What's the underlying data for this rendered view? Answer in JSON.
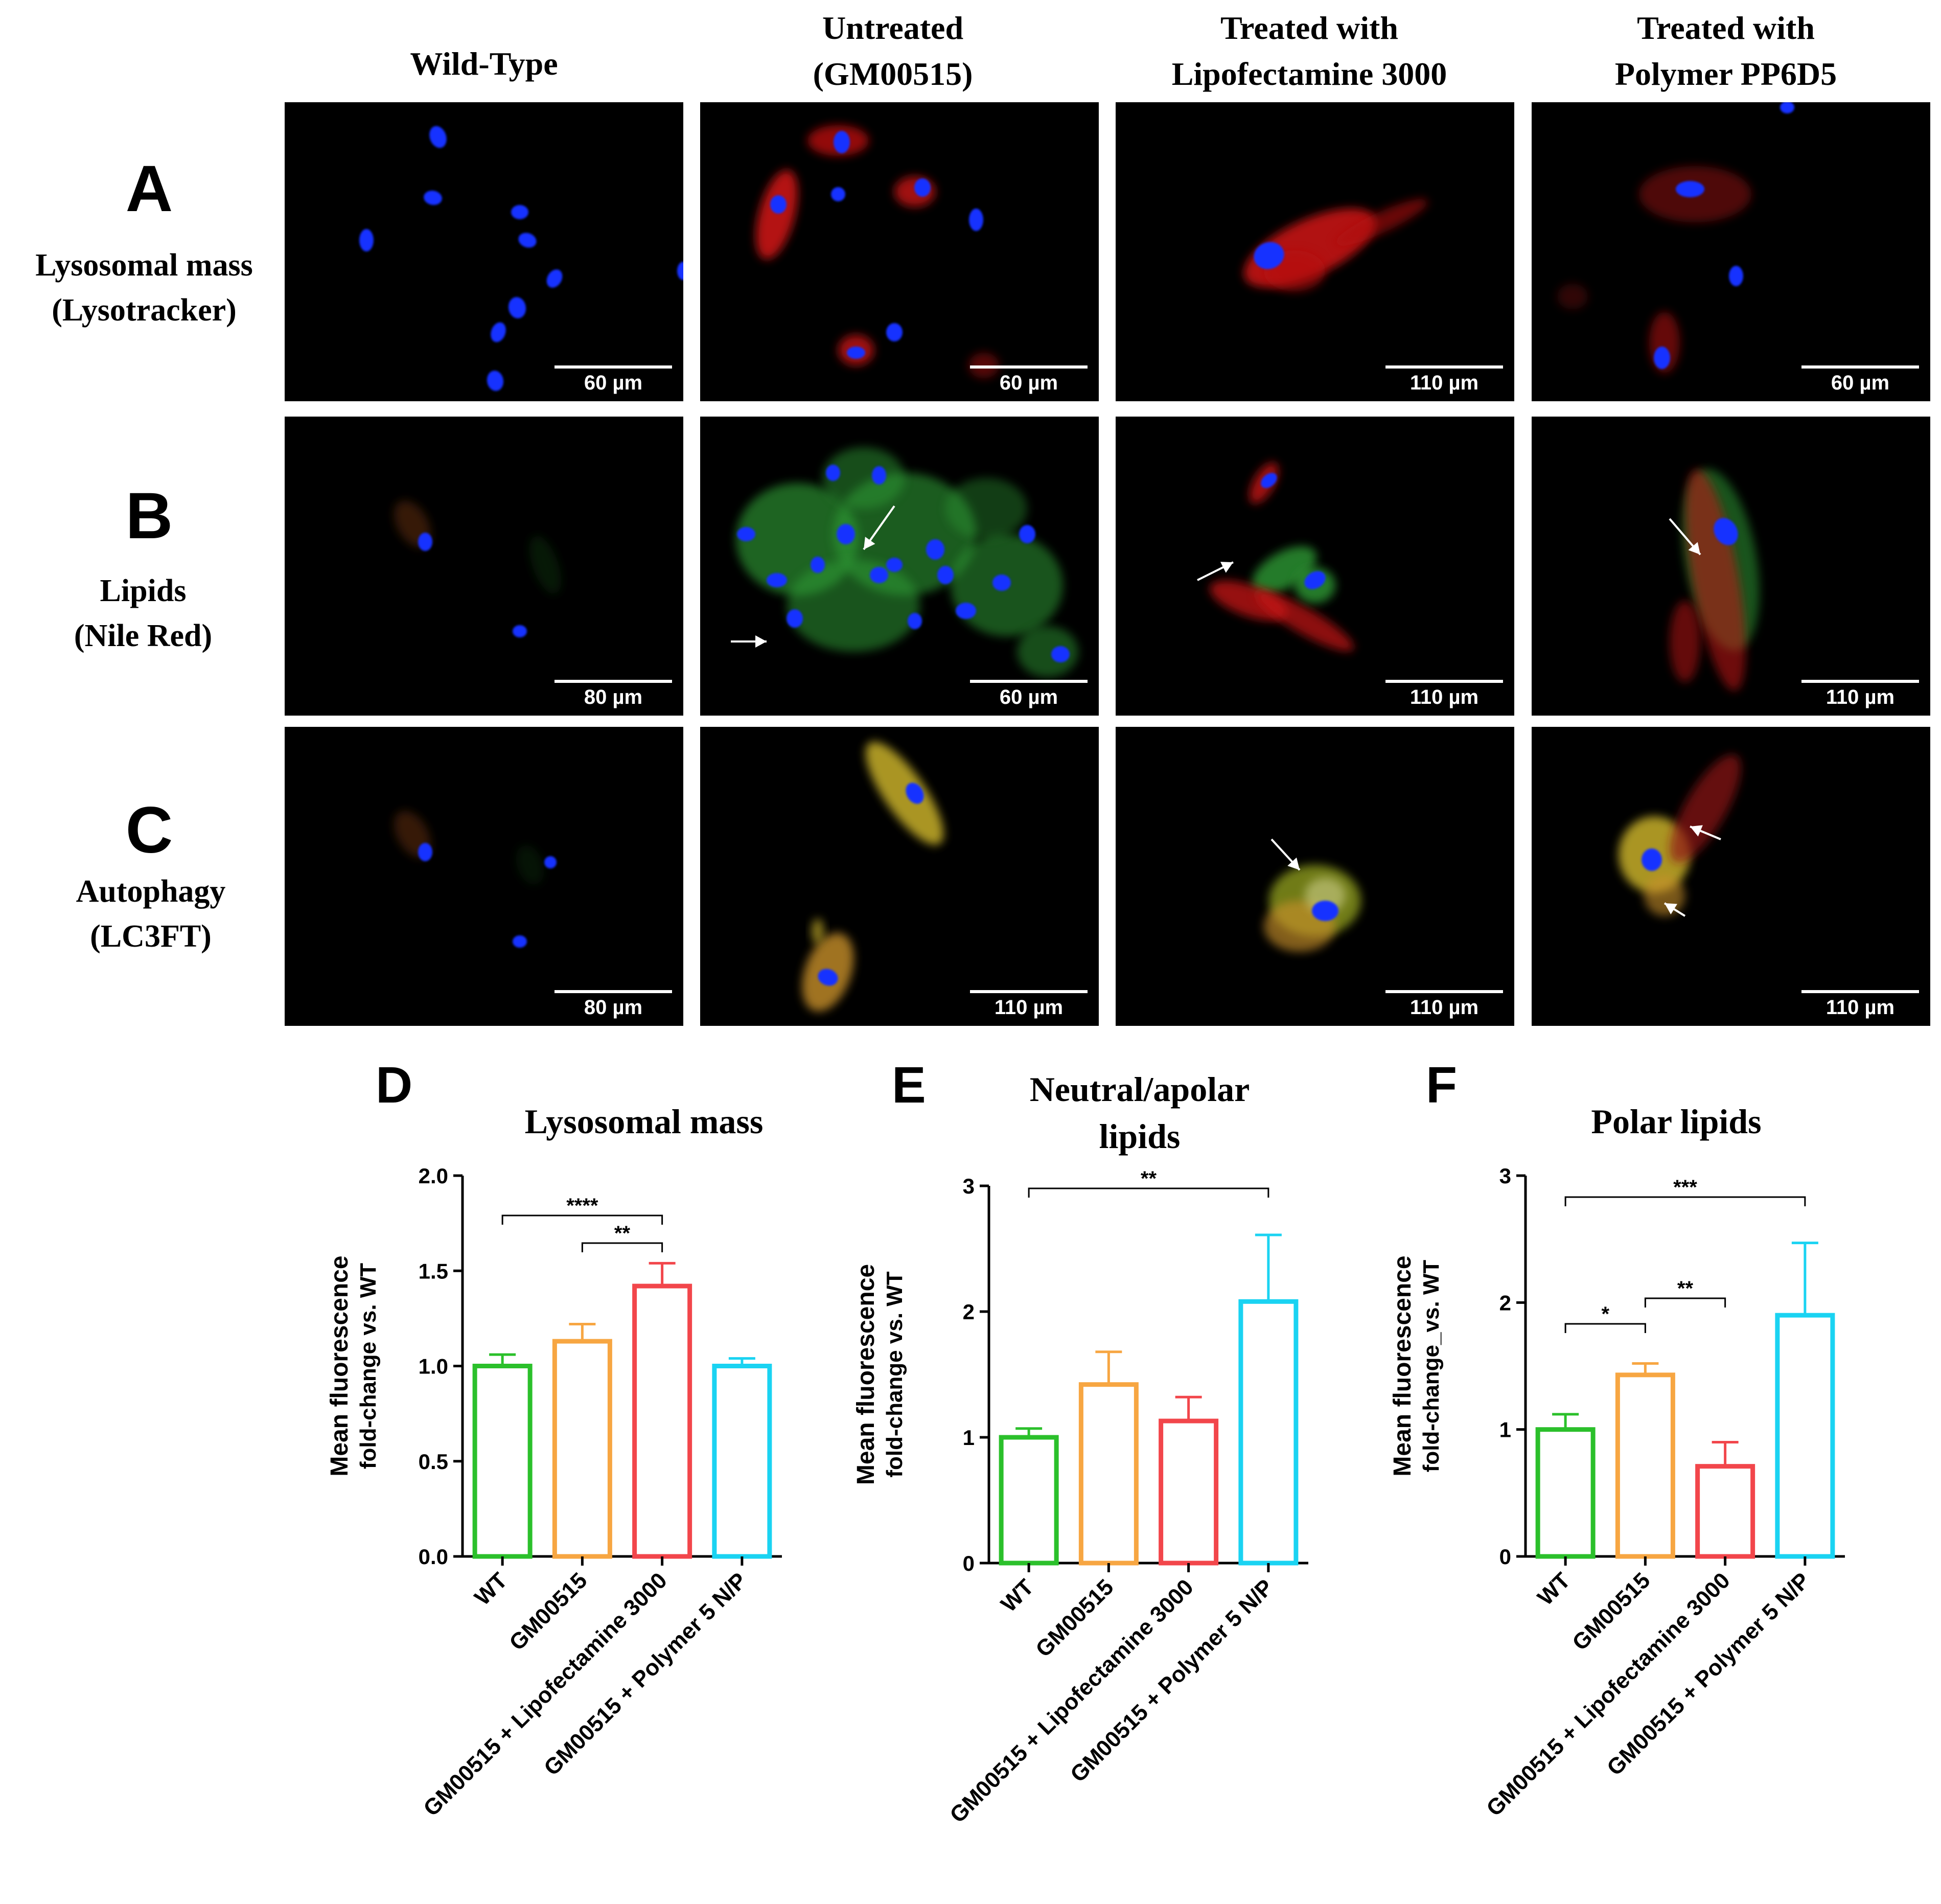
{
  "columns": [
    {
      "line1": "Wild-Type",
      "line2": ""
    },
    {
      "line1": "Untreated",
      "line2": "(GM00515)"
    },
    {
      "line1": "Treated with",
      "line2": "Lipofectamine 3000"
    },
    {
      "line1": "Treated with",
      "line2": "Polymer PP6D5"
    }
  ],
  "rows": [
    {
      "letter": "A",
      "line1": "Lysosomal mass",
      "line2": "(Lysotracker)"
    },
    {
      "letter": "B",
      "line1": "Lipids",
      "line2": "(Nile Red)"
    },
    {
      "letter": "C",
      "line1": "Autophagy",
      "line2": "(LC3FT)"
    }
  ],
  "scale_bars": [
    [
      "60 µm",
      "60 µm",
      "110 µm",
      "60 µm"
    ],
    [
      "80 µm",
      "60 µm",
      "110 µm",
      "110 µm"
    ],
    [
      "80 µm",
      "110 µm",
      "110 µm",
      "110 µm"
    ]
  ],
  "colors": {
    "wt": "#2bc02b",
    "gm": "#f7a642",
    "lipo": "#f2464b",
    "poly": "#1ad3f2",
    "nucleus": "#1530ff",
    "lysotracker": "#d01818",
    "nilered_green": "#2f9a34",
    "lc3_yellow": "#c8b02a"
  },
  "chart_data": [
    {
      "letter": "D",
      "type": "bar",
      "title": "Lysosomal mass",
      "ylabel_line1": "Mean fluorescence",
      "ylabel_line2": "fold-change vs. WT",
      "categories": [
        "WT",
        "GM00515",
        "GM00515 + Lipofectamine 3000",
        "GM00515 + Polymer 5 N/P"
      ],
      "values": [
        1.0,
        1.13,
        1.42,
        1.0
      ],
      "errors": [
        0.06,
        0.09,
        0.12,
        0.04
      ],
      "ylim": [
        0,
        2.0
      ],
      "yticks": [
        "0.0",
        "0.5",
        "1.0",
        "1.5",
        "2.0"
      ],
      "yticks_values": [
        0,
        0.5,
        1.0,
        1.5,
        2.0
      ],
      "significance": [
        {
          "from": 0,
          "to": 2,
          "label": "****"
        },
        {
          "from": 1,
          "to": 2,
          "label": "**"
        }
      ]
    },
    {
      "letter": "E",
      "type": "bar",
      "title_line1": "Neutral/apolar",
      "title_line2": "lipids",
      "ylabel_line1": "Mean fluorescence",
      "ylabel_line2": "fold-change vs. WT",
      "categories": [
        "WT",
        "GM00515",
        "GM00515 + Lipofectamine 3000",
        "GM00515 + Polymer 5 N/P"
      ],
      "values": [
        1.0,
        1.42,
        1.13,
        2.08
      ],
      "errors": [
        0.07,
        0.26,
        0.19,
        0.53
      ],
      "ylim": [
        0,
        3
      ],
      "yticks": [
        "0",
        "1",
        "2",
        "3"
      ],
      "yticks_values": [
        0,
        1,
        2,
        3
      ],
      "significance": [
        {
          "from": 0,
          "to": 3,
          "label": "**"
        }
      ]
    },
    {
      "letter": "F",
      "type": "bar",
      "title": "Polar lipids",
      "ylabel_line1": "Mean fluorescence",
      "ylabel_line2": "fold-change_vs. WT",
      "categories": [
        "WT",
        "GM00515",
        "GM00515 + Lipofectamine 3000",
        "GM00515 + Polymer 5 N/P"
      ],
      "values": [
        1.0,
        1.43,
        0.71,
        1.9
      ],
      "errors": [
        0.12,
        0.09,
        0.19,
        0.57
      ],
      "ylim": [
        0,
        3
      ],
      "yticks": [
        "0",
        "1",
        "2",
        "3"
      ],
      "yticks_values": [
        0,
        1,
        2,
        3
      ],
      "significance": [
        {
          "from": 0,
          "to": 3,
          "label": "***"
        },
        {
          "from": 0,
          "to": 1,
          "label": "*"
        },
        {
          "from": 1,
          "to": 2,
          "label": "**"
        }
      ]
    }
  ]
}
